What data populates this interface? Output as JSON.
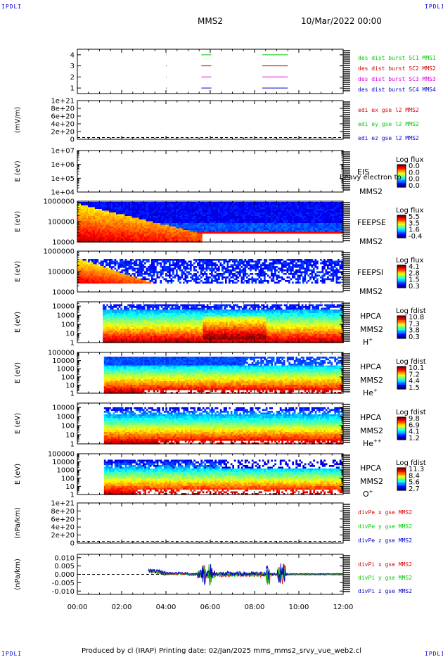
{
  "header": {
    "corner_label": "IPDLI",
    "spacecraft": "MMS2",
    "datetime": "10/Mar/2022 00:00"
  },
  "footer": {
    "text": "Produced by cl (IRAP)   Printing date: 02/Jan/2025   mms_mms2_srvy_vue_web2.cl"
  },
  "colors": {
    "sc1": "#00cc00",
    "sc2": "#cc0000",
    "sc3": "#dd00dd",
    "sc4": "#0000cc",
    "x": "#dd0000",
    "y": "#00cc00",
    "z": "#0000cc"
  },
  "chart_data": [
    {
      "type": "line",
      "id": "burst",
      "ylabel": "",
      "yticks": [
        "1",
        "2",
        "3",
        "4"
      ],
      "ylim": [
        0.5,
        4.5
      ],
      "xlim_hours": [
        0,
        12
      ],
      "series": [
        {
          "name": "des dist burst SC1 MMS1",
          "level": 4,
          "segments": [
            [
              4.0,
              4.02
            ],
            [
              5.6,
              6.05
            ],
            [
              8.35,
              9.5
            ]
          ]
        },
        {
          "name": "des dist burst SC2 MMS2",
          "level": 3,
          "segments": [
            [
              4.0,
              4.02
            ],
            [
              5.6,
              6.05
            ],
            [
              8.35,
              9.5
            ]
          ]
        },
        {
          "name": "des dist burst SC3 MMS3",
          "level": 2,
          "segments": [
            [
              4.0,
              4.02
            ],
            [
              5.6,
              6.05
            ],
            [
              8.35,
              9.5
            ]
          ]
        },
        {
          "name": "des dist burst SC4 MMS4",
          "level": 1,
          "segments": [
            [
              4.0,
              4.02
            ],
            [
              5.6,
              6.05
            ],
            [
              8.35,
              9.5
            ]
          ]
        }
      ]
    },
    {
      "type": "line",
      "id": "edi",
      "ylabel": "(mV/m)",
      "yticks": [
        "0",
        "2e+20",
        "4e+20",
        "6e+20",
        "8e+20",
        "1e+21"
      ],
      "ylim": [
        0,
        1e+21
      ],
      "series": [
        {
          "name": "edi ex gse l2 MMS2",
          "values": []
        },
        {
          "name": "edi ey gse l2 MMS2",
          "values": []
        },
        {
          "name": "edi ez gse l2 MMS2",
          "values": []
        }
      ]
    },
    {
      "type": "heatmap",
      "id": "eis",
      "ylabel": "E (eV)",
      "yticks": [
        "1e+04",
        "1e+05",
        "1e+06",
        "1e+07"
      ],
      "ylim": [
        10000,
        10000000
      ],
      "yscale": "log",
      "instrument": [
        "EIS",
        "MMS2"
      ],
      "overlay_text": "heavy electron to",
      "colorbar_title": "Log flux",
      "colorbar_ticks": [
        "0.0",
        "0.0",
        "0.0",
        "0.0"
      ]
    },
    {
      "type": "heatmap",
      "id": "feepse",
      "ylabel": "E (eV)",
      "yticks": [
        "10000",
        "100000",
        "1000000"
      ],
      "ylim": [
        10000,
        1000000
      ],
      "yscale": "log",
      "instrument": [
        "FEEPSE",
        "MMS2"
      ],
      "colorbar_title": "Log flux",
      "colorbar_ticks": [
        "5.5",
        "3.5",
        "1.6",
        "-0.4"
      ],
      "start_hour": 0,
      "note": "warm fill at low energy decaying with time; cool background later"
    },
    {
      "type": "heatmap",
      "id": "feepsi",
      "ylabel": "E (eV)",
      "yticks": [
        "10000",
        "100000",
        "1000000"
      ],
      "ylim": [
        10000,
        1000000
      ],
      "yscale": "log",
      "instrument": [
        "FEEPSI",
        "MMS2"
      ],
      "colorbar_title": "Log flux",
      "colorbar_ticks": [
        "4.1",
        "2.8",
        "1.5",
        "0.3"
      ],
      "start_hour": 0
    },
    {
      "type": "heatmap",
      "id": "hpca_h",
      "ylabel": "E (eV)",
      "yticks": [
        "1",
        "10",
        "100",
        "1000",
        "10000"
      ],
      "ylim": [
        1,
        30000
      ],
      "yscale": "log",
      "instrument": [
        "HPCA",
        "MMS2",
        "H+"
      ],
      "colorbar_title": "Log fdist",
      "colorbar_ticks": [
        "10.8",
        "7.3",
        "3.8",
        "0.3"
      ],
      "start_hour": 1.15
    },
    {
      "type": "heatmap",
      "id": "hpca_he",
      "ylabel": "E (eV)",
      "yticks": [
        "1",
        "10",
        "100",
        "1000",
        "10000",
        "100000"
      ],
      "ylim": [
        1,
        100000
      ],
      "yscale": "log",
      "instrument": [
        "HPCA",
        "MMS2",
        "He+"
      ],
      "colorbar_title": "Log fdist",
      "colorbar_ticks": [
        "10.1",
        "7.2",
        "4.4",
        "1.5"
      ],
      "start_hour": 1.2
    },
    {
      "type": "heatmap",
      "id": "hpca_hepp",
      "ylabel": "E (eV)",
      "yticks": [
        "1",
        "10",
        "100",
        "1000",
        "10000"
      ],
      "ylim": [
        1,
        30000
      ],
      "yscale": "log",
      "instrument": [
        "HPCA",
        "MMS2",
        "He++"
      ],
      "colorbar_title": "Log fdist",
      "colorbar_ticks": [
        "9.8",
        "6.9",
        "4.1",
        "1.2"
      ],
      "start_hour": 1.2
    },
    {
      "type": "heatmap",
      "id": "hpca_o",
      "ylabel": "E (eV)",
      "yticks": [
        "1",
        "10",
        "100",
        "1000",
        "10000",
        "100000"
      ],
      "ylim": [
        1,
        100000
      ],
      "yscale": "log",
      "instrument": [
        "HPCA",
        "MMS2",
        "O+"
      ],
      "colorbar_title": "Log fdist",
      "colorbar_ticks": [
        "11.3",
        "8.4",
        "5.6",
        "2.7"
      ],
      "start_hour": 1.2
    },
    {
      "type": "line",
      "id": "divpe",
      "ylabel": "(nPa/km)",
      "yticks": [
        "0",
        "2e+20",
        "4e+20",
        "6e+20",
        "8e+20",
        "1e+21"
      ],
      "ylim": [
        0,
        1e+21
      ],
      "series": [
        {
          "name": "divPe x gse MMS2",
          "values": []
        },
        {
          "name": "divPe y gse MMS2",
          "values": []
        },
        {
          "name": "divPe z gse MMS2",
          "values": []
        }
      ]
    },
    {
      "type": "line",
      "id": "divpi",
      "ylabel": "(nPa/km)",
      "yticks": [
        "-0.010",
        "-0.005",
        "0.000",
        "0.005",
        "0.010"
      ],
      "ylim": [
        -0.012,
        0.012
      ],
      "series": [
        {
          "name": "divPi x gse MMS2"
        },
        {
          "name": "divPi y gse MMS2"
        },
        {
          "name": "divPi z gse MMS2"
        }
      ],
      "data_hours": [
        3.2,
        12.0
      ],
      "spikes_hours": [
        5.7,
        6.0,
        8.6,
        9.1,
        9.3
      ]
    }
  ],
  "xaxis": {
    "ticks": [
      "00:00",
      "02:00",
      "04:00",
      "06:00",
      "08:00",
      "10:00",
      "12:00"
    ],
    "xlim_hours": [
      0,
      12
    ]
  }
}
